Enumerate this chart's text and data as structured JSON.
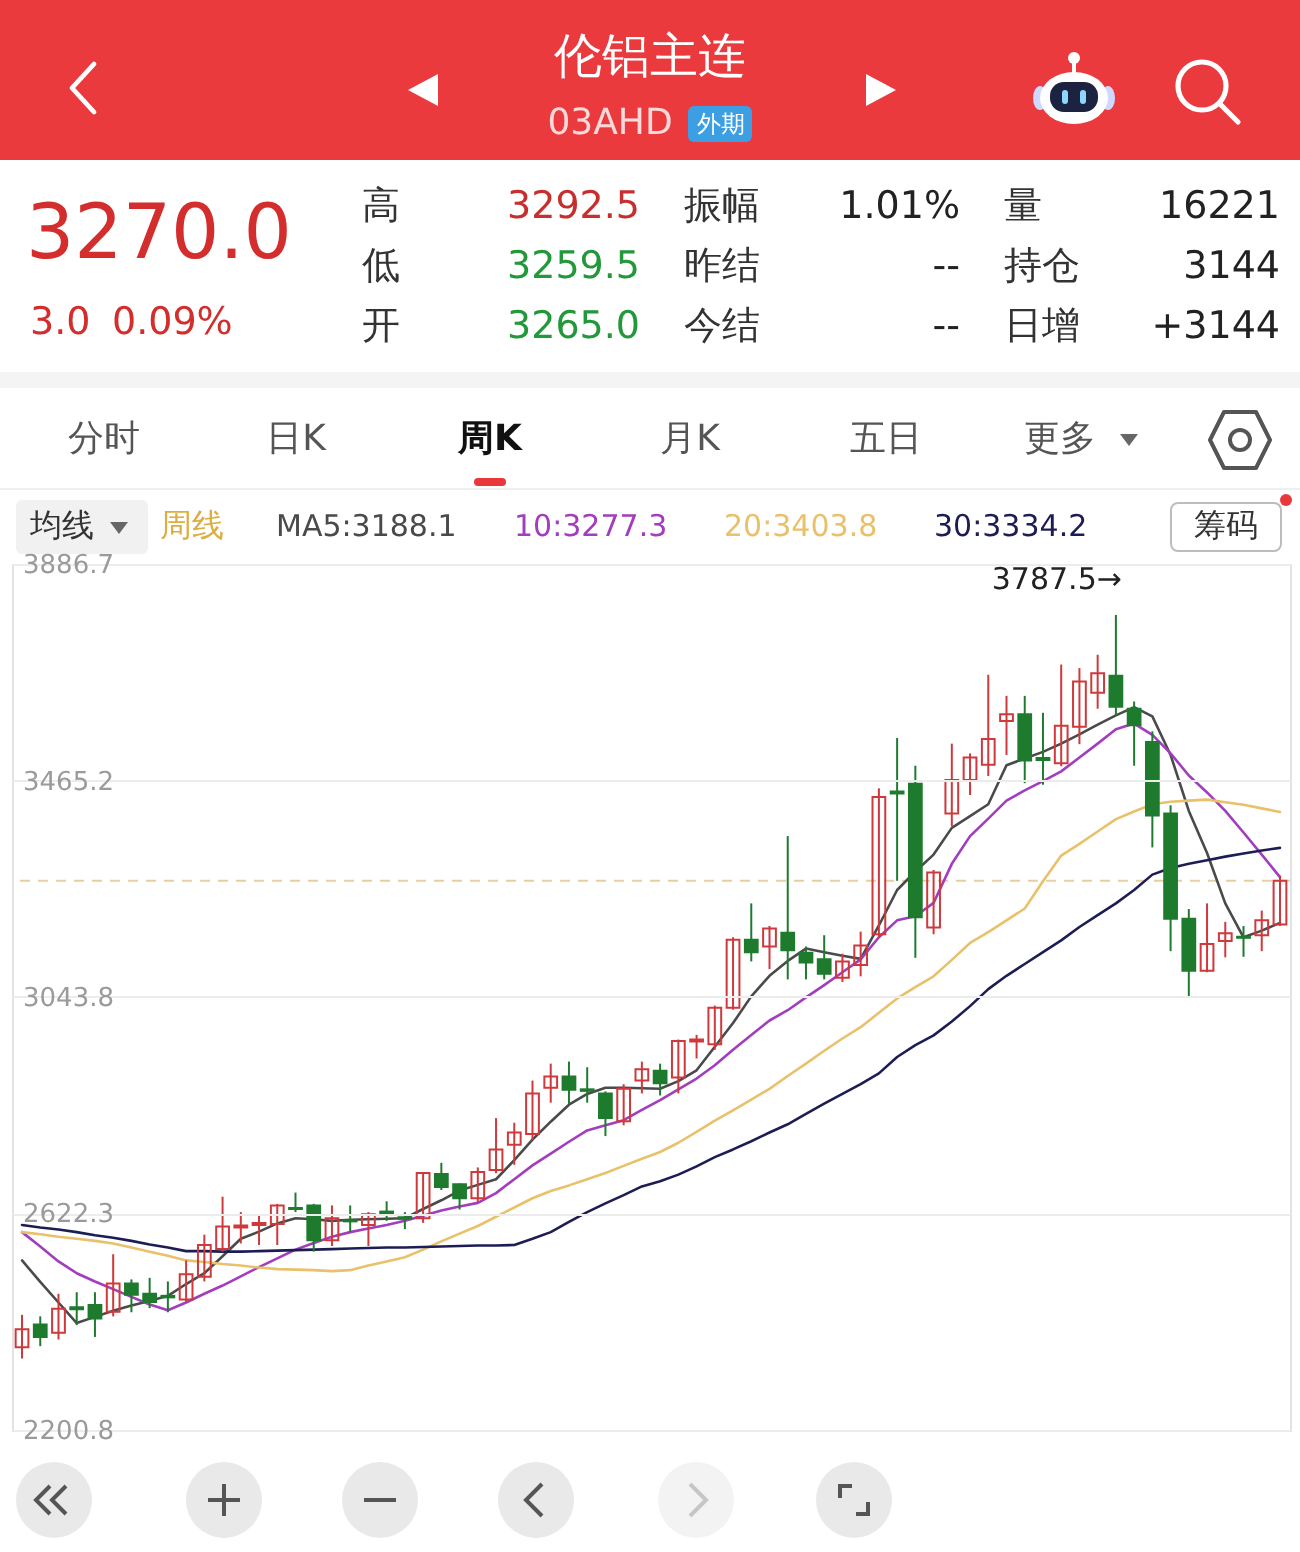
{
  "chart_data": {
    "type": "candlestick",
    "title": "伦铝主连",
    "subtitle": "03AHD",
    "categories": [
      null,
      null,
      null,
      null,
      null,
      null,
      null,
      null,
      null,
      null,
      null,
      null,
      null,
      null,
      null,
      null,
      null,
      null,
      null,
      null,
      null,
      null,
      null,
      null,
      null,
      null,
      null,
      null,
      null,
      null,
      null,
      null,
      null,
      null,
      null,
      null,
      null,
      null,
      null,
      null,
      null,
      null,
      null,
      null,
      null,
      null,
      null,
      null,
      null,
      null,
      null,
      null,
      null,
      null,
      null,
      null,
      null,
      null,
      null,
      null,
      null,
      null,
      null,
      null,
      null,
      null,
      null,
      null,
      null,
      null
    ],
    "ohlc": [
      [
        2362,
        2425,
        2340,
        2397
      ],
      [
        2406,
        2422,
        2364,
        2382
      ],
      [
        2390,
        2466,
        2377,
        2437
      ],
      [
        2440,
        2469,
        2405,
        2436
      ],
      [
        2444,
        2469,
        2382,
        2418
      ],
      [
        2431,
        2543,
        2422,
        2486
      ],
      [
        2486,
        2494,
        2430,
        2464
      ],
      [
        2466,
        2497,
        2438,
        2450
      ],
      [
        2462,
        2490,
        2430,
        2459
      ],
      [
        2455,
        2531,
        2450,
        2504
      ],
      [
        2499,
        2581,
        2490,
        2561
      ],
      [
        2553,
        2655,
        2548,
        2597
      ],
      [
        2595,
        2625,
        2564,
        2599
      ],
      [
        2600,
        2619,
        2561,
        2604
      ],
      [
        2602,
        2641,
        2561,
        2638
      ],
      [
        2633,
        2663,
        2625,
        2631
      ],
      [
        2638,
        2641,
        2548,
        2570
      ],
      [
        2570,
        2638,
        2559,
        2613
      ],
      [
        2609,
        2638,
        2586,
        2607
      ],
      [
        2600,
        2625,
        2559,
        2621
      ],
      [
        2626,
        2646,
        2608,
        2623
      ],
      [
        2615,
        2625,
        2592,
        2612
      ],
      [
        2613,
        2703,
        2604,
        2701
      ],
      [
        2699,
        2721,
        2668,
        2674
      ],
      [
        2679,
        2681,
        2630,
        2652
      ],
      [
        2652,
        2712,
        2645,
        2703
      ],
      [
        2707,
        2808,
        2701,
        2747
      ],
      [
        2756,
        2799,
        2717,
        2780
      ],
      [
        2777,
        2881,
        2766,
        2856
      ],
      [
        2867,
        2914,
        2838,
        2889
      ],
      [
        2889,
        2918,
        2835,
        2863
      ],
      [
        2864,
        2907,
        2838,
        2861
      ],
      [
        2856,
        2860,
        2773,
        2808
      ],
      [
        2802,
        2874,
        2794,
        2865
      ],
      [
        2881,
        2918,
        2856,
        2903
      ],
      [
        2900,
        2914,
        2852,
        2876
      ],
      [
        2887,
        2961,
        2856,
        2958
      ],
      [
        2957,
        2970,
        2924,
        2961
      ],
      [
        2952,
        3027,
        2941,
        3023
      ],
      [
        3023,
        3160,
        3019,
        3155
      ],
      [
        3155,
        3226,
        3113,
        3131
      ],
      [
        3142,
        3182,
        3098,
        3177
      ],
      [
        3169,
        3357,
        3078,
        3135
      ],
      [
        3130,
        3142,
        3078,
        3111
      ],
      [
        3117,
        3164,
        3078,
        3089
      ],
      [
        3081,
        3128,
        3073,
        3113
      ],
      [
        3106,
        3171,
        3084,
        3144
      ],
      [
        3166,
        3450,
        3160,
        3433
      ],
      [
        3444,
        3548,
        3270,
        3440
      ],
      [
        3459,
        3494,
        3120,
        3199
      ],
      [
        3179,
        3291,
        3166,
        3286
      ],
      [
        3401,
        3537,
        3376,
        3466
      ],
      [
        3466,
        3518,
        3437,
        3510
      ],
      [
        3496,
        3671,
        3474,
        3546
      ],
      [
        3581,
        3630,
        3515,
        3594
      ],
      [
        3594,
        3630,
        3460,
        3504
      ],
      [
        3509,
        3597,
        3457,
        3505
      ],
      [
        3499,
        3691,
        3493,
        3572
      ],
      [
        3570,
        3684,
        3536,
        3658
      ],
      [
        3636,
        3710,
        3605,
        3674
      ],
      [
        3669,
        3787.5,
        3592,
        3609
      ],
      [
        3605,
        3619,
        3494,
        3573
      ],
      [
        3540,
        3561,
        3335,
        3397
      ],
      [
        3401,
        3417,
        3133,
        3196
      ],
      [
        3196,
        3215,
        3045,
        3095
      ],
      [
        3095,
        3226,
        3092,
        3147
      ],
      [
        3153,
        3190,
        3121,
        3168
      ],
      [
        3161,
        3182,
        3122,
        3159
      ],
      [
        3164,
        3212,
        3133,
        3193
      ],
      [
        3185,
        3280,
        3182,
        3270.0
      ]
    ],
    "colors": [
      "#d0393b",
      "#1e7b2e",
      "#d0393b",
      "#1e7b2e",
      "#1e7b2e",
      "#d0393b",
      "#1e7b2e",
      "#1e7b2e",
      "#1e7b2e",
      "#d0393b",
      "#d0393b",
      "#d0393b",
      "#d0393b",
      "#d0393b",
      "#d0393b",
      "#1e7b2e",
      "#1e7b2e",
      "#d0393b",
      "#1e7b2e",
      "#d0393b",
      "#1e7b2e",
      "#1e7b2e",
      "#d0393b",
      "#1e7b2e",
      "#1e7b2e",
      "#d0393b",
      "#d0393b",
      "#d0393b",
      "#d0393b",
      "#d0393b",
      "#1e7b2e",
      "#1e7b2e",
      "#1e7b2e",
      "#d0393b",
      "#d0393b",
      "#1e7b2e",
      "#d0393b",
      "#d0393b",
      "#d0393b",
      "#d0393b",
      "#1e7b2e",
      "#d0393b",
      "#1e7b2e",
      "#1e7b2e",
      "#1e7b2e",
      "#d0393b",
      "#d0393b",
      "#d0393b",
      "#1e7b2e",
      "#1e7b2e",
      "#d0393b",
      "#d0393b",
      "#d0393b",
      "#d0393b",
      "#d0393b",
      "#1e7b2e",
      "#1e7b2e",
      "#d0393b",
      "#d0393b",
      "#d0393b",
      "#1e7b2e",
      "#1e7b2e",
      "#1e7b2e",
      "#1e7b2e",
      "#1e7b2e",
      "#d0393b",
      "#d0393b",
      "#1e7b2e",
      "#d0393b",
      "#d0393b"
    ],
    "series": [
      {
        "type": "line",
        "name": "MA5:3188.1",
        "color": "#4a4a4a",
        "values": [
          2531,
          2489,
          2449,
          2409,
          2421,
          2433,
          2443,
          2452,
          2462,
          2485,
          2506,
          2539,
          2573,
          2587,
          2603,
          2613,
          2611,
          2608,
          2610,
          2611,
          2612,
          2613,
          2631,
          2648,
          2667,
          2678,
          2689,
          2726,
          2766,
          2801,
          2834,
          2855,
          2867,
          2867,
          2866,
          2865,
          2880,
          2901,
          2947,
          2993,
          3045,
          3085,
          3114,
          3138,
          3131,
          3124,
          3118,
          3183,
          3252,
          3288,
          3321,
          3373,
          3396,
          3419,
          3495,
          3508,
          3521,
          3537,
          3555,
          3574,
          3592,
          3608,
          3590,
          3515,
          3406,
          3324,
          3226,
          3160,
          3173,
          3188
        ]
      },
      {
        "type": "line",
        "name": "10:3277.3",
        "color": "#a23dbd",
        "values": [
          2586,
          2558,
          2529,
          2506,
          2490,
          2475,
          2460,
          2445,
          2434,
          2449,
          2466,
          2482,
          2500,
          2518,
          2535,
          2552,
          2565,
          2577,
          2586,
          2593,
          2600,
          2608,
          2618,
          2628,
          2636,
          2643,
          2662,
          2689,
          2716,
          2739,
          2762,
          2784,
          2794,
          2804,
          2824,
          2843,
          2864,
          2885,
          2911,
          2941,
          2970,
          2998,
          3018,
          3043,
          3067,
          3092,
          3117,
          3160,
          3193,
          3201,
          3227,
          3303,
          3357,
          3391,
          3426,
          3446,
          3464,
          3483,
          3510,
          3537,
          3565,
          3576,
          3554,
          3518,
          3475,
          3442,
          3406,
          3364,
          3321,
          3277
        ]
      },
      {
        "type": "line",
        "name": "20:3403.8",
        "color": "#e8c16a",
        "values": [
          2586,
          2582,
          2577,
          2573,
          2569,
          2564,
          2556,
          2548,
          2540,
          2531,
          2528,
          2524,
          2521,
          2517,
          2514,
          2513,
          2512,
          2510,
          2512,
          2521,
          2529,
          2537,
          2552,
          2568,
          2583,
          2598,
          2616,
          2634,
          2652,
          2666,
          2677,
          2689,
          2701,
          2715,
          2729,
          2742,
          2760,
          2781,
          2803,
          2823,
          2844,
          2865,
          2890,
          2914,
          2939,
          2963,
          2985,
          3013,
          3041,
          3063,
          3084,
          3116,
          3149,
          3170,
          3193,
          3216,
          3269,
          3319,
          3342,
          3366,
          3390,
          3405,
          3419,
          3424,
          3426,
          3428,
          3423,
          3418,
          3411,
          3404
        ]
      },
      {
        "type": "line",
        "name": "30:3334.2",
        "color": "#1d1d55",
        "values": [
          2600,
          2595,
          2591,
          2586,
          2580,
          2575,
          2569,
          2562,
          2556,
          2549,
          2549,
          2548,
          2548,
          2549,
          2550,
          2551,
          2552,
          2553,
          2554,
          2555,
          2556,
          2556,
          2557,
          2558,
          2559,
          2560,
          2560,
          2561,
          2573,
          2586,
          2606,
          2625,
          2642,
          2658,
          2675,
          2685,
          2698,
          2714,
          2732,
          2747,
          2763,
          2780,
          2796,
          2816,
          2836,
          2855,
          2874,
          2895,
          2927,
          2950,
          2969,
          2996,
          3026,
          3059,
          3085,
          3108,
          3131,
          3154,
          3180,
          3203,
          3226,
          3252,
          3282,
          3295,
          3303,
          3310,
          3317,
          3323,
          3329,
          3334
        ]
      }
    ],
    "ylim": [
      2200.8,
      3886.7
    ],
    "yticks": [
      2200.8,
      2622.3,
      3043.8,
      3465.2,
      3886.7
    ],
    "grid": "y",
    "legend": "top",
    "tick_labels": "y",
    "ref_lines": [
      {
        "axis": "y",
        "value": 3270.0,
        "color": "#e6cfa3",
        "line_style": "dashed"
      }
    ],
    "annotations": [
      "外期",
      "3270.0",
      "3.0",
      "0.09%",
      "高",
      "3292.5",
      "低",
      "3259.5",
      "开",
      "3265.0",
      "振幅",
      "1.01%",
      "昨结",
      "--",
      "今结",
      "--",
      "量",
      "16221",
      "持仓",
      "3144",
      "日增",
      "+3144",
      "分时",
      "日K",
      "周K",
      "月K",
      "五日",
      "更多",
      "均线",
      "周线",
      "筹码",
      "3787.5→"
    ]
  }
}
